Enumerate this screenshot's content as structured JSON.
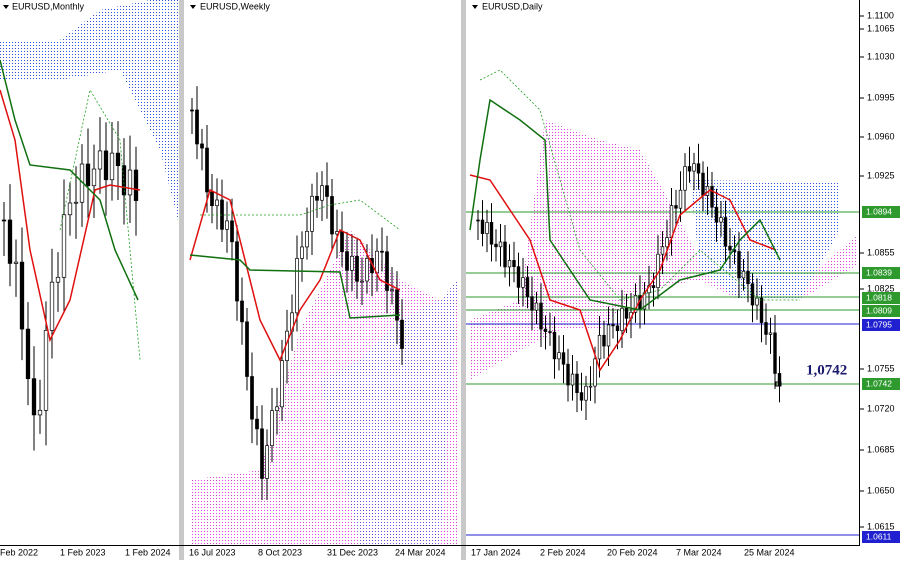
{
  "panels": [
    {
      "title": "EURUSD,Monthly",
      "x_labels": [
        "Feb 2022",
        "1 Feb 2023",
        "1 Feb 2024"
      ]
    },
    {
      "title": "EURUSD,Weekly",
      "x_labels": [
        "16 Jul 2023",
        "8 Oct 2023",
        "31 Dec 2023",
        "24 Mar 2024"
      ]
    },
    {
      "title": "EURUSD,Daily",
      "x_labels": [
        "17 Jan 2024",
        "2 Feb 2024",
        "20 Feb 2024",
        "7 Mar 2024",
        "25 Mar 2024"
      ]
    }
  ],
  "price_axis": [
    "1.1100",
    "1.1065",
    "1.1030",
    "1.0995",
    "1.0960",
    "1.0925",
    "1.0855",
    "1.0825",
    "1.0755",
    "1.0720",
    "1.0685",
    "1.0650",
    "1.0615"
  ],
  "levels": [
    "1.0894",
    "1.0839",
    "1.0818",
    "1.0809",
    "1.0795",
    "1.0742",
    "1.0611"
  ],
  "annotation": "1,0742"
}
